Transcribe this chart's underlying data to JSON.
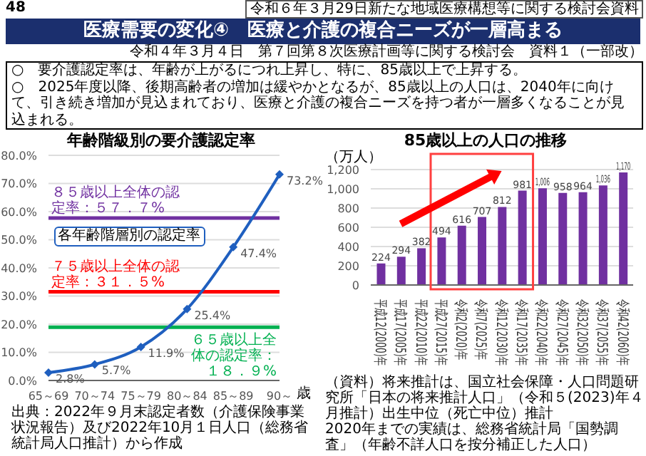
{
  "chart_data": [
    {
      "type": "other",
      "title": "医療需要の変化④　医療と介護の複合ニーズが一層高まる",
      "annotations": [
        "令和６年３月29日新たな地域医療構想等に関する検討会資料",
        "令和４年３月４日　第７回第８次医療計画等に関する検討会　資料１（一部改）",
        "○　要介護認定率は、年齢が上がるにつれ上昇し、特に、85歳以上で上昇する。",
        "○　2025年度以降、後期高齢者の増加は緩やかとなるが、85歳以上の人口は、2040年に向けて、引き続き増加が見込まれており、医療と介護の複合ニーズを持つ者が一層多くなることが見込まれる。",
        "48"
      ]
    },
    {
      "type": "line",
      "title": "年齢階級別の要介護認定率",
      "xlabel": "歳",
      "categories": [
        "65～69",
        "70～74",
        "75～79",
        "80～84",
        "85～89",
        "90～"
      ],
      "series": [
        {
          "color": "#1f5fbf",
          "values": [
            2.8,
            5.7,
            11.9,
            25.4,
            47.4,
            73.2
          ],
          "value_labels": [
            "2.8%",
            "5.7%",
            "11.9%",
            "25.4%",
            "47.4%",
            "73.2%"
          ]
        }
      ],
      "ylim": [
        0,
        80
      ],
      "yticks": [
        {
          "value": 0,
          "label": "0.0%"
        },
        {
          "value": 10,
          "label": "10.0%"
        },
        {
          "value": 20,
          "label": "20.0%"
        },
        {
          "value": 30,
          "label": "30.0%"
        },
        {
          "value": 40,
          "label": "40.0%"
        },
        {
          "value": 50,
          "label": "50.0%"
        },
        {
          "value": 60,
          "label": "60.0%"
        },
        {
          "value": 70,
          "label": "70.0%"
        },
        {
          "value": 80,
          "label": "80.0%"
        }
      ],
      "grid": "y",
      "legend": false,
      "marker": "diamond",
      "ref_lines": [
        {
          "axis": "y",
          "value": 57.7,
          "label": "８５歳以上全体の認定率：５７．７%",
          "color": "#7030a0"
        },
        {
          "axis": "y",
          "value": 31.5,
          "label": "７５歳以上全体の認定率：３１．５%",
          "color": "#ff0000"
        },
        {
          "axis": "y",
          "value": 18.9,
          "label": "６５歳以上全体の認定率：１８．９%",
          "color": "#00b050"
        }
      ],
      "annotations": [
        {
          "text": "各年齢階層別の認定率",
          "x": "85～89",
          "y": 47.4
        },
        "出典：2022年９月末認定者数（介護保険事業状況報告）及び2022年10月１日人口（総務省統計局人口推計）から作成"
      ]
    },
    {
      "type": "bar",
      "title": "85歳以上の人口の推移",
      "ylabel": "（万人）",
      "categories": [
        "平成12(2000)年",
        "平成17(2005)年",
        "平成22(2010)年",
        "平成27(2015)年",
        "令和2(2020)年",
        "令和7(2025)年",
        "令和12(2030)年",
        "令和17(2035)年",
        "令和22(2040)年",
        "令和27(2045)年",
        "令和32(2050)年",
        "令和37(2055)年",
        "令和42(2060)年"
      ],
      "values": [
        224,
        294,
        382,
        494,
        616,
        707,
        812,
        981,
        1006,
        958,
        964,
        1036,
        1170
      ],
      "color": "#7030a0",
      "value_labels": [
        "224",
        "294",
        "382",
        "494",
        "616",
        "707",
        "812",
        "981",
        "1,006",
        "958",
        "964",
        "1,036",
        "1,170"
      ],
      "ylim": [
        0,
        1200
      ],
      "yticks": [
        0,
        200,
        400,
        600,
        800,
        {
          "value": 1000,
          "label": "1,000"
        },
        {
          "value": 1200,
          "label": "1,200"
        }
      ],
      "grid": "y",
      "legend": false,
      "annotations": [
        "（資料）将来推計は、国立社会保障・人口問題研究所「日本の将来推計人口」（令和５(2023)年４月推計）出生中位（死亡中位）推計",
        "2020年までの実績は、総務省統計局「国勢調査」（年齢不詳人口を按分補正した人口）"
      ]
    }
  ]
}
